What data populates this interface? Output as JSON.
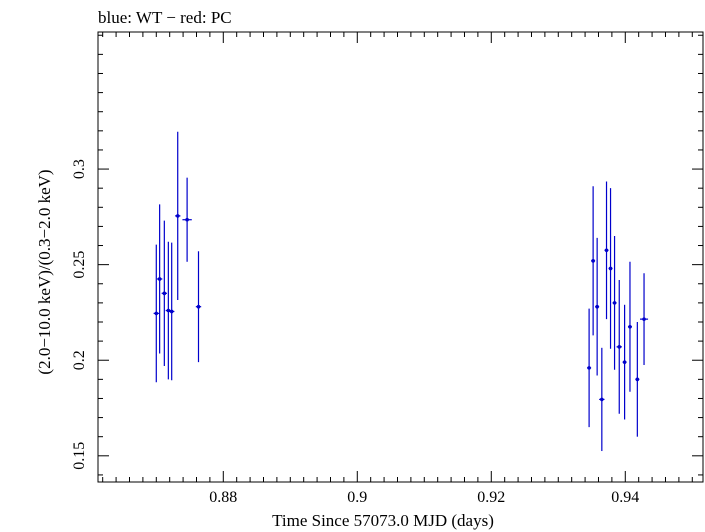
{
  "chart_data": {
    "type": "scatter",
    "title": "blue: WT − red: PC",
    "xlabel": "Time Since 57073.0 MJD (days)",
    "ylabel": "(2.0−10.0 keV)/(0.3−2.0 keV)",
    "xlim": [
      0.8613,
      0.9516
    ],
    "ylim": [
      0.1363,
      0.3717
    ],
    "xticks": [
      0.88,
      0.9,
      0.92,
      0.94
    ],
    "xtick_labels": [
      "0.88",
      "0.9",
      "0.92",
      "0.94"
    ],
    "yticks": [
      0.15,
      0.2,
      0.25,
      0.3
    ],
    "ytick_labels": [
      "0.15",
      "0.2",
      "0.25",
      "0.3"
    ],
    "grid": false,
    "legend": "none",
    "series": [
      {
        "color": "#0000cc",
        "points": [
          {
            "x": 0.87,
            "y": 0.2245,
            "xerr": 0.0004,
            "yerr": 0.036
          },
          {
            "x": 0.8705,
            "y": 0.2425,
            "xerr": 0.0004,
            "yerr": 0.039
          },
          {
            "x": 0.8712,
            "y": 0.235,
            "xerr": 0.0004,
            "yerr": 0.038
          },
          {
            "x": 0.8718,
            "y": 0.226,
            "xerr": 0.0004,
            "yerr": 0.036
          },
          {
            "x": 0.8723,
            "y": 0.2255,
            "xerr": 0.0004,
            "yerr": 0.036
          },
          {
            "x": 0.8732,
            "y": 0.2755,
            "xerr": 0.0004,
            "yerr": 0.044
          },
          {
            "x": 0.8746,
            "y": 0.2735,
            "xerr": 0.0007,
            "yerr": 0.022
          },
          {
            "x": 0.8763,
            "y": 0.228,
            "xerr": 0.0004,
            "yerr": 0.029
          },
          {
            "x": 0.9346,
            "y": 0.196,
            "xerr": 0.0003,
            "yerr": 0.031
          },
          {
            "x": 0.9352,
            "y": 0.252,
            "xerr": 0.0003,
            "yerr": 0.039
          },
          {
            "x": 0.9358,
            "y": 0.228,
            "xerr": 0.0003,
            "yerr": 0.036
          },
          {
            "x": 0.9365,
            "y": 0.1795,
            "xerr": 0.0004,
            "yerr": 0.027
          },
          {
            "x": 0.9372,
            "y": 0.2575,
            "xerr": 0.0003,
            "yerr": 0.036
          },
          {
            "x": 0.9378,
            "y": 0.248,
            "xerr": 0.0003,
            "yerr": 0.042
          },
          {
            "x": 0.9384,
            "y": 0.23,
            "xerr": 0.0003,
            "yerr": 0.035
          },
          {
            "x": 0.9391,
            "y": 0.207,
            "xerr": 0.0004,
            "yerr": 0.035
          },
          {
            "x": 0.9399,
            "y": 0.199,
            "xerr": 0.0003,
            "yerr": 0.03
          },
          {
            "x": 0.9407,
            "y": 0.2175,
            "xerr": 0.0003,
            "yerr": 0.034
          },
          {
            "x": 0.9418,
            "y": 0.19,
            "xerr": 0.0003,
            "yerr": 0.03
          },
          {
            "x": 0.9428,
            "y": 0.2215,
            "xerr": 0.0006,
            "yerr": 0.024
          }
        ]
      }
    ]
  }
}
